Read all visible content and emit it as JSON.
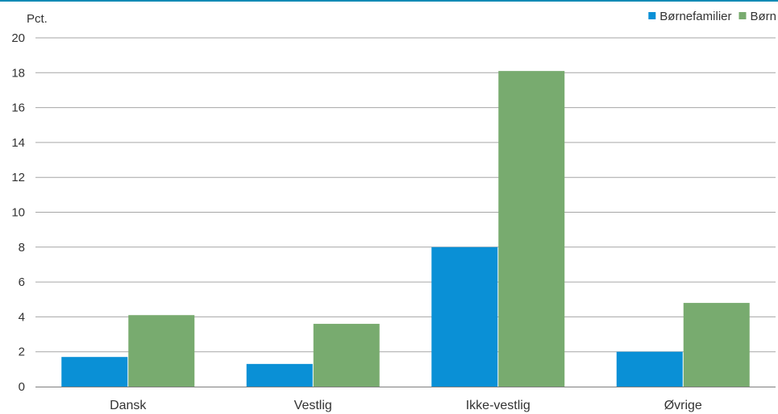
{
  "colors": {
    "top_rule": "#0f8bb5",
    "gridline": "#a6a6a6",
    "axis": "#7f7f7f"
  },
  "chart_data": {
    "type": "bar",
    "ylabel": "Pct.",
    "ylim": [
      0,
      20
    ],
    "yticks": [
      0,
      2,
      4,
      6,
      8,
      10,
      12,
      14,
      16,
      18,
      20
    ],
    "grid": true,
    "legend_position": "top-right",
    "categories": [
      "Dansk",
      "Vestlig",
      "Ikke-vestlig",
      "Øvrige"
    ],
    "series": [
      {
        "name": "Børnefamilier",
        "color": "#0a90d6",
        "values": [
          1.7,
          1.3,
          8.0,
          2.0
        ]
      },
      {
        "name": "Børn",
        "color": "#78ab6f",
        "values": [
          4.1,
          3.6,
          18.1,
          4.8
        ]
      }
    ]
  }
}
